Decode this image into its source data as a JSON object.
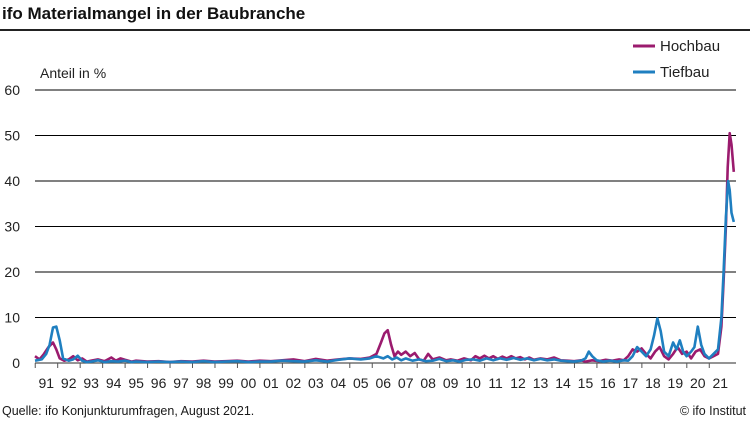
{
  "title": "ifo Materialmangel in der Baubranche",
  "source": "Quelle: ifo Konjunkturumfragen, August 2021.",
  "copyright": "© ifo Institut",
  "colors": {
    "hochbau": "#9b1b6e",
    "tiefbau": "#1f7fc0",
    "grid": "#000000",
    "axis": "#555555"
  },
  "chart_data": {
    "type": "line",
    "ylabel": "Anteil in %",
    "ylim": [
      0,
      60
    ],
    "yticks": [
      0,
      10,
      20,
      30,
      40,
      50,
      60
    ],
    "xlim": [
      1990.5,
      2021.7
    ],
    "xticks": [
      "91",
      "92",
      "93",
      "94",
      "95",
      "96",
      "97",
      "98",
      "99",
      "00",
      "01",
      "02",
      "03",
      "04",
      "05",
      "06",
      "07",
      "08",
      "09",
      "10",
      "11",
      "12",
      "13",
      "14",
      "15",
      "16",
      "17",
      "18",
      "19",
      "20",
      "21"
    ],
    "legend_position": "top-right",
    "series": [
      {
        "name": "Hochbau",
        "color": "#9b1b6e",
        "points": [
          [
            1990.5,
            1.5
          ],
          [
            1990.7,
            0.8
          ],
          [
            1990.9,
            2.0
          ],
          [
            1991.1,
            3.5
          ],
          [
            1991.3,
            4.5
          ],
          [
            1991.45,
            3.0
          ],
          [
            1991.6,
            1.0
          ],
          [
            1991.8,
            0.5
          ],
          [
            1992.0,
            0.8
          ],
          [
            1992.2,
            1.5
          ],
          [
            1992.4,
            0.6
          ],
          [
            1992.6,
            1.0
          ],
          [
            1992.8,
            0.3
          ],
          [
            1993.0,
            0.5
          ],
          [
            1993.3,
            0.8
          ],
          [
            1993.6,
            0.4
          ],
          [
            1993.9,
            1.2
          ],
          [
            1994.1,
            0.5
          ],
          [
            1994.3,
            1.0
          ],
          [
            1994.5,
            0.7
          ],
          [
            1994.8,
            0.3
          ],
          [
            1995.0,
            0.5
          ],
          [
            1995.5,
            0.3
          ],
          [
            1996.0,
            0.4
          ],
          [
            1996.5,
            0.2
          ],
          [
            1997.0,
            0.4
          ],
          [
            1997.5,
            0.3
          ],
          [
            1998.0,
            0.5
          ],
          [
            1998.5,
            0.3
          ],
          [
            1999.0,
            0.4
          ],
          [
            1999.5,
            0.5
          ],
          [
            2000.0,
            0.3
          ],
          [
            2000.5,
            0.5
          ],
          [
            2001.0,
            0.4
          ],
          [
            2001.5,
            0.6
          ],
          [
            2002.0,
            0.8
          ],
          [
            2002.5,
            0.4
          ],
          [
            2003.0,
            0.9
          ],
          [
            2003.5,
            0.5
          ],
          [
            2004.0,
            0.8
          ],
          [
            2004.5,
            1.0
          ],
          [
            2005.0,
            0.9
          ],
          [
            2005.4,
            1.2
          ],
          [
            2005.7,
            2.0
          ],
          [
            2005.9,
            4.5
          ],
          [
            2006.05,
            6.5
          ],
          [
            2006.2,
            7.2
          ],
          [
            2006.35,
            4.0
          ],
          [
            2006.5,
            1.5
          ],
          [
            2006.65,
            2.5
          ],
          [
            2006.8,
            1.8
          ],
          [
            2007.0,
            2.5
          ],
          [
            2007.2,
            1.5
          ],
          [
            2007.4,
            2.2
          ],
          [
            2007.6,
            0.8
          ],
          [
            2007.8,
            0.5
          ],
          [
            2008.0,
            2.0
          ],
          [
            2008.2,
            0.8
          ],
          [
            2008.5,
            1.2
          ],
          [
            2008.8,
            0.6
          ],
          [
            2009.0,
            0.8
          ],
          [
            2009.3,
            0.5
          ],
          [
            2009.6,
            1.0
          ],
          [
            2009.9,
            0.6
          ],
          [
            2010.1,
            1.5
          ],
          [
            2010.3,
            1.0
          ],
          [
            2010.5,
            1.6
          ],
          [
            2010.7,
            1.0
          ],
          [
            2010.9,
            1.5
          ],
          [
            2011.1,
            0.9
          ],
          [
            2011.3,
            1.4
          ],
          [
            2011.5,
            1.0
          ],
          [
            2011.7,
            1.5
          ],
          [
            2011.9,
            1.0
          ],
          [
            2012.1,
            1.3
          ],
          [
            2012.3,
            0.8
          ],
          [
            2012.5,
            1.2
          ],
          [
            2012.7,
            0.7
          ],
          [
            2013.0,
            1.0
          ],
          [
            2013.3,
            0.8
          ],
          [
            2013.6,
            1.2
          ],
          [
            2013.9,
            0.6
          ],
          [
            2014.2,
            0.5
          ],
          [
            2014.5,
            0.4
          ],
          [
            2014.8,
            0.6
          ],
          [
            2015.0,
            0.3
          ],
          [
            2015.3,
            0.6
          ],
          [
            2015.6,
            0.4
          ],
          [
            2015.9,
            0.7
          ],
          [
            2016.2,
            0.5
          ],
          [
            2016.5,
            0.8
          ],
          [
            2016.7,
            0.6
          ],
          [
            2016.9,
            1.5
          ],
          [
            2017.1,
            3.0
          ],
          [
            2017.3,
            2.5
          ],
          [
            2017.5,
            3.2
          ],
          [
            2017.7,
            2.0
          ],
          [
            2017.9,
            1.0
          ],
          [
            2018.1,
            2.5
          ],
          [
            2018.3,
            3.5
          ],
          [
            2018.5,
            1.5
          ],
          [
            2018.7,
            0.8
          ],
          [
            2018.9,
            2.0
          ],
          [
            2019.1,
            3.5
          ],
          [
            2019.3,
            2.0
          ],
          [
            2019.5,
            2.5
          ],
          [
            2019.7,
            1.0
          ],
          [
            2019.9,
            2.5
          ],
          [
            2020.1,
            3.0
          ],
          [
            2020.3,
            1.5
          ],
          [
            2020.5,
            1.0
          ],
          [
            2020.7,
            1.5
          ],
          [
            2020.9,
            2.0
          ],
          [
            2021.05,
            8.0
          ],
          [
            2021.15,
            18.0
          ],
          [
            2021.25,
            30.0
          ],
          [
            2021.33,
            43.0
          ],
          [
            2021.42,
            50.5
          ],
          [
            2021.5,
            48.0
          ],
          [
            2021.6,
            42.0
          ]
        ]
      },
      {
        "name": "Tiefbau",
        "color": "#1f7fc0",
        "points": [
          [
            1990.5,
            0.5
          ],
          [
            1990.8,
            0.8
          ],
          [
            1991.0,
            2.0
          ],
          [
            1991.15,
            4.0
          ],
          [
            1991.3,
            7.8
          ],
          [
            1991.45,
            8.0
          ],
          [
            1991.6,
            5.0
          ],
          [
            1991.75,
            1.0
          ],
          [
            1992.0,
            0.5
          ],
          [
            1992.2,
            0.8
          ],
          [
            1992.4,
            1.6
          ],
          [
            1992.6,
            0.5
          ],
          [
            1992.8,
            0.2
          ],
          [
            1993.0,
            0.3
          ],
          [
            1993.3,
            0.6
          ],
          [
            1993.6,
            0.2
          ],
          [
            1993.9,
            0.4
          ],
          [
            1994.2,
            0.3
          ],
          [
            1994.5,
            0.5
          ],
          [
            1994.8,
            0.2
          ],
          [
            1995.0,
            0.3
          ],
          [
            1995.5,
            0.2
          ],
          [
            1996.0,
            0.3
          ],
          [
            1996.5,
            0.2
          ],
          [
            1997.0,
            0.3
          ],
          [
            1997.5,
            0.2
          ],
          [
            1998.0,
            0.4
          ],
          [
            1998.5,
            0.2
          ],
          [
            1999.0,
            0.3
          ],
          [
            1999.5,
            0.4
          ],
          [
            2000.0,
            0.2
          ],
          [
            2000.5,
            0.3
          ],
          [
            2001.0,
            0.3
          ],
          [
            2001.5,
            0.5
          ],
          [
            2002.0,
            0.4
          ],
          [
            2002.5,
            0.3
          ],
          [
            2003.0,
            0.6
          ],
          [
            2003.5,
            0.3
          ],
          [
            2004.0,
            0.7
          ],
          [
            2004.5,
            1.0
          ],
          [
            2005.0,
            0.8
          ],
          [
            2005.4,
            1.0
          ],
          [
            2005.7,
            1.5
          ],
          [
            2006.0,
            1.0
          ],
          [
            2006.2,
            1.5
          ],
          [
            2006.4,
            0.8
          ],
          [
            2006.6,
            1.2
          ],
          [
            2006.8,
            0.6
          ],
          [
            2007.0,
            1.0
          ],
          [
            2007.3,
            0.5
          ],
          [
            2007.6,
            0.8
          ],
          [
            2007.9,
            0.4
          ],
          [
            2008.2,
            0.5
          ],
          [
            2008.5,
            0.9
          ],
          [
            2008.8,
            0.4
          ],
          [
            2009.1,
            0.6
          ],
          [
            2009.4,
            0.3
          ],
          [
            2009.7,
            0.7
          ],
          [
            2010.0,
            0.8
          ],
          [
            2010.3,
            0.5
          ],
          [
            2010.6,
            1.0
          ],
          [
            2010.9,
            0.6
          ],
          [
            2011.2,
            1.0
          ],
          [
            2011.5,
            0.7
          ],
          [
            2011.8,
            1.1
          ],
          [
            2012.1,
            0.7
          ],
          [
            2012.4,
            1.0
          ],
          [
            2012.7,
            0.6
          ],
          [
            2013.0,
            0.9
          ],
          [
            2013.3,
            0.6
          ],
          [
            2013.6,
            0.8
          ],
          [
            2013.9,
            0.5
          ],
          [
            2014.2,
            0.4
          ],
          [
            2014.5,
            0.3
          ],
          [
            2014.8,
            0.5
          ],
          [
            2015.0,
            1.0
          ],
          [
            2015.15,
            2.5
          ],
          [
            2015.3,
            1.5
          ],
          [
            2015.5,
            0.6
          ],
          [
            2015.8,
            0.3
          ],
          [
            2016.1,
            0.5
          ],
          [
            2016.4,
            0.3
          ],
          [
            2016.7,
            0.6
          ],
          [
            2016.9,
            0.5
          ],
          [
            2017.1,
            1.5
          ],
          [
            2017.3,
            3.5
          ],
          [
            2017.5,
            2.5
          ],
          [
            2017.7,
            1.5
          ],
          [
            2017.9,
            3.0
          ],
          [
            2018.05,
            6.0
          ],
          [
            2018.2,
            9.8
          ],
          [
            2018.35,
            7.0
          ],
          [
            2018.5,
            2.5
          ],
          [
            2018.7,
            1.5
          ],
          [
            2018.9,
            4.5
          ],
          [
            2019.05,
            3.0
          ],
          [
            2019.2,
            5.0
          ],
          [
            2019.35,
            2.5
          ],
          [
            2019.5,
            1.5
          ],
          [
            2019.7,
            2.5
          ],
          [
            2019.85,
            3.5
          ],
          [
            2020.0,
            8.0
          ],
          [
            2020.15,
            4.0
          ],
          [
            2020.3,
            2.0
          ],
          [
            2020.5,
            1.0
          ],
          [
            2020.7,
            2.0
          ],
          [
            2020.9,
            3.0
          ],
          [
            2021.05,
            10.0
          ],
          [
            2021.15,
            20.0
          ],
          [
            2021.25,
            32.0
          ],
          [
            2021.35,
            40.0
          ],
          [
            2021.42,
            38.0
          ],
          [
            2021.5,
            33.0
          ],
          [
            2021.6,
            31.0
          ]
        ]
      }
    ]
  }
}
